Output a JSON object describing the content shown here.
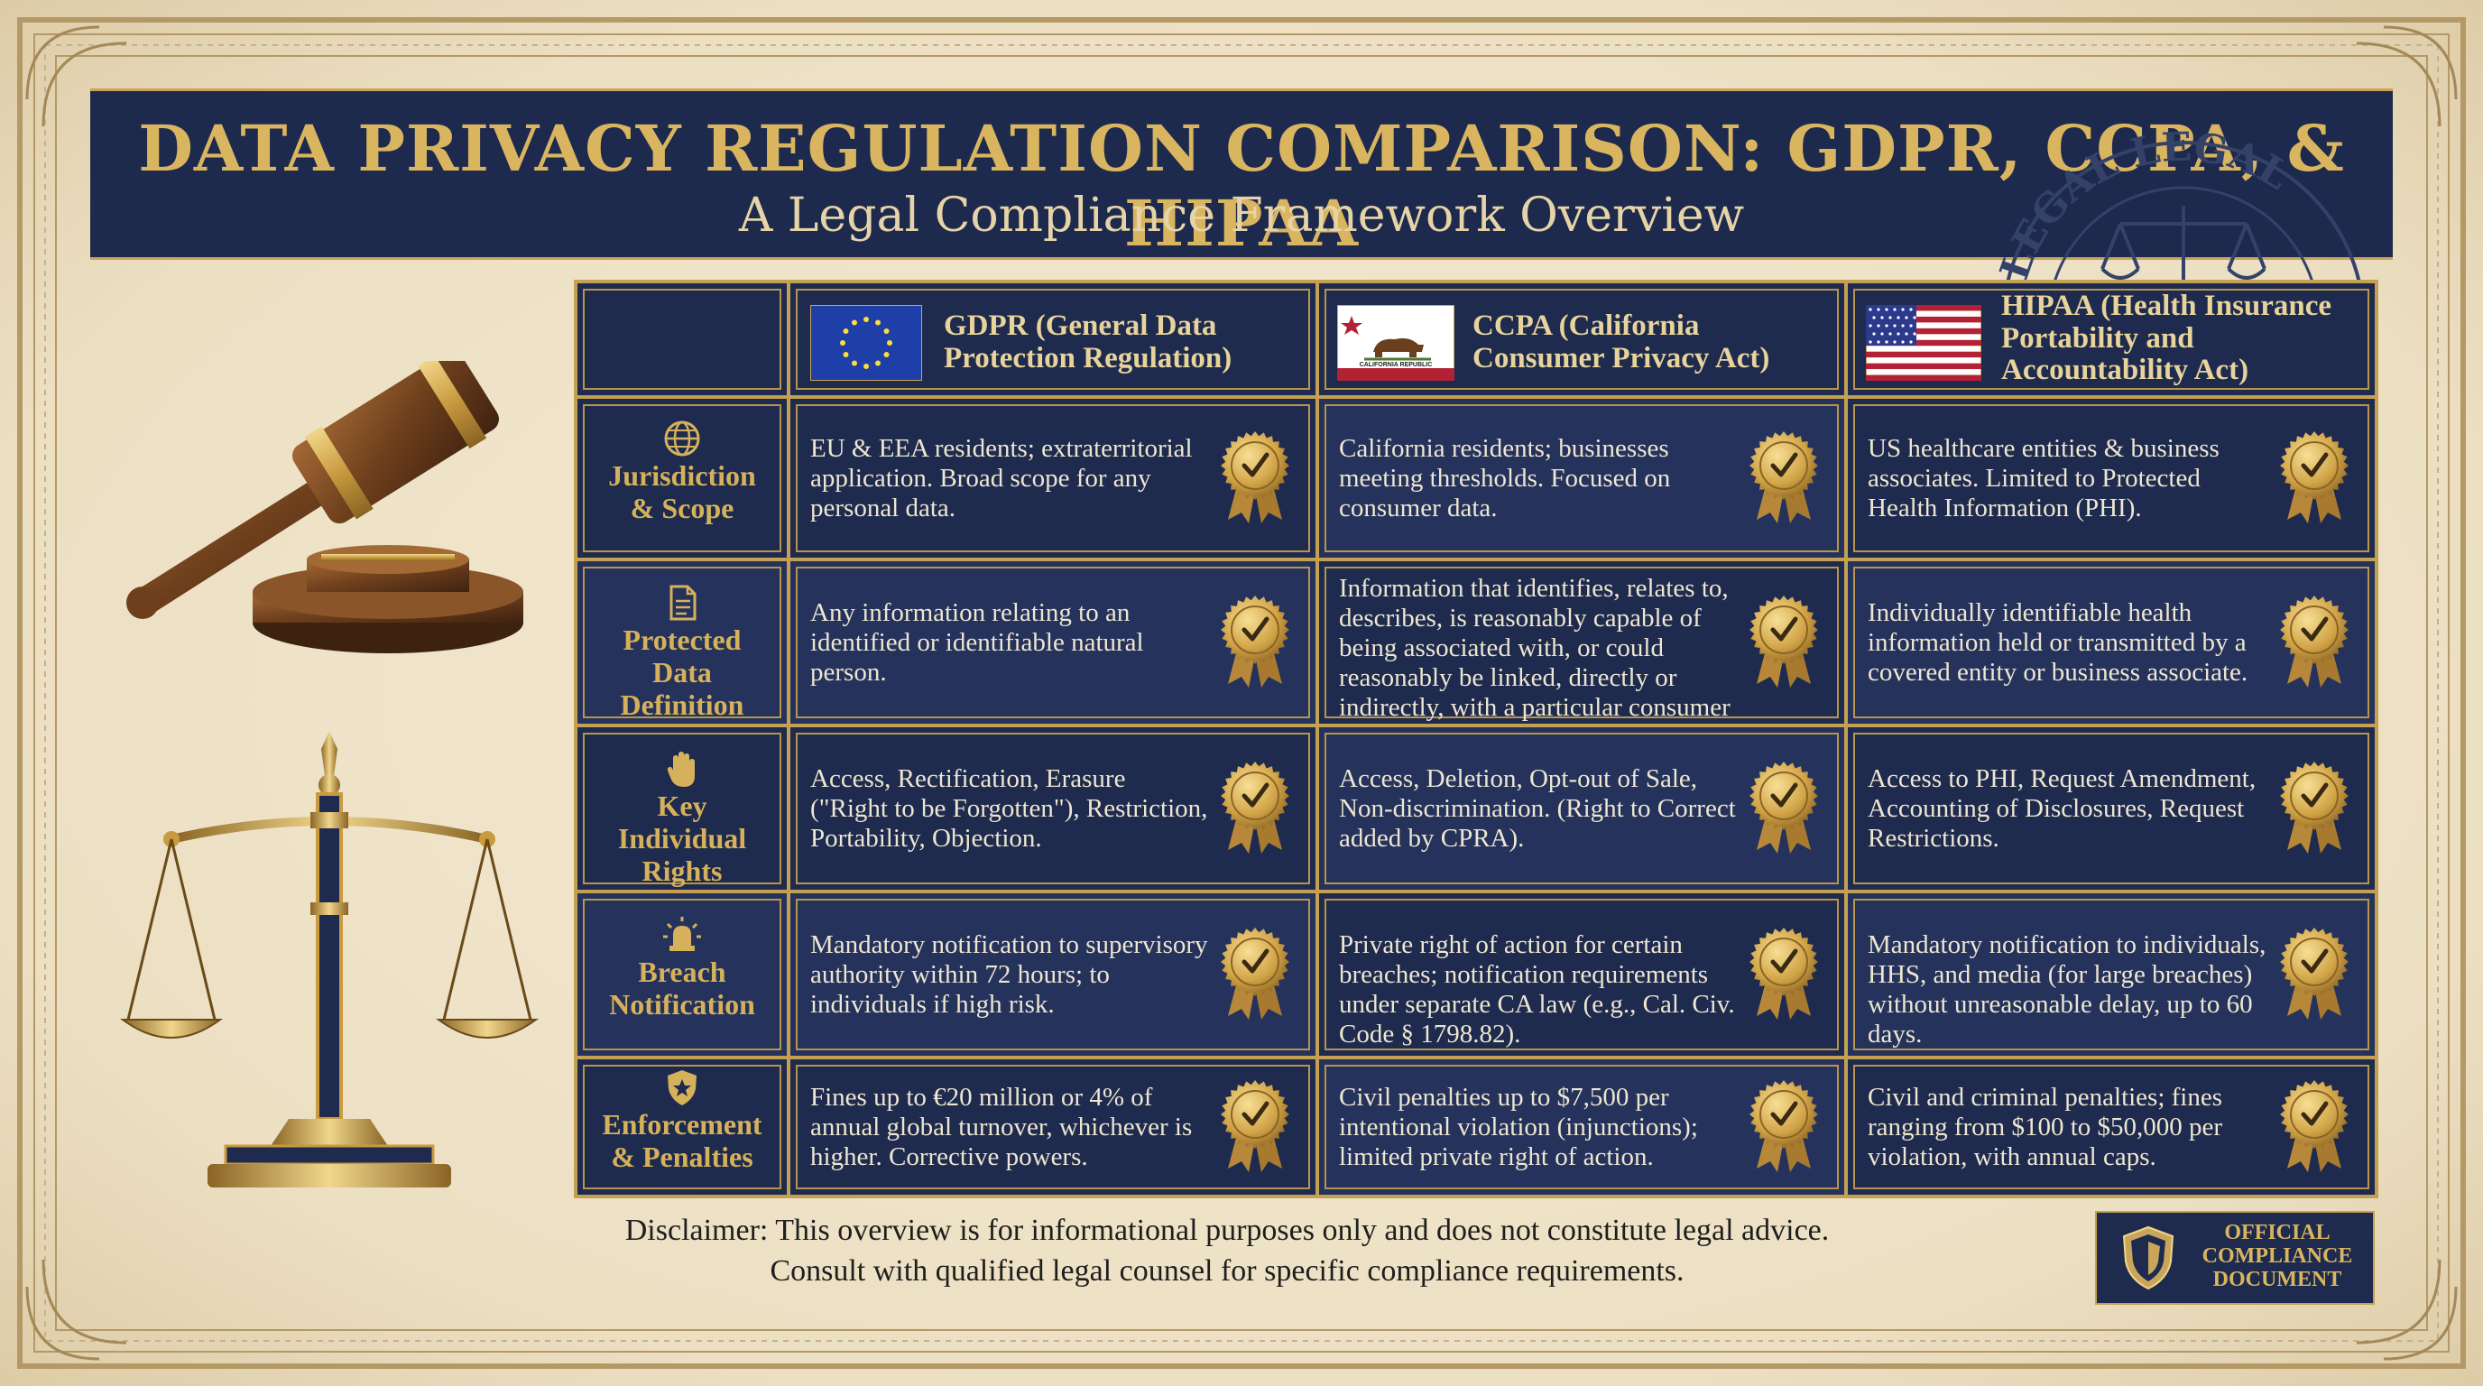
{
  "header": {
    "title": "DATA PRIVACY REGULATION COMPARISON: GDPR, CCPA, & HIPAA",
    "subtitle": "A Legal Compliance Framework Overview"
  },
  "columns": [
    {
      "label": "GDPR (General Data Protection Regulation)",
      "flag": "eu-flag-icon"
    },
    {
      "label": "CCPA (California Consumer Privacy Act)",
      "flag": "california-flag-icon",
      "flag_text": "CALIFORNIA REPUBLIC"
    },
    {
      "label": "HIPAA (Health Insurance Portability and Accountability Act)",
      "flag": "us-flag-icon"
    }
  ],
  "rows": [
    {
      "label": "Jurisdiction & Scope",
      "icon": "globe-icon",
      "cells": [
        "EU & EEA residents; extraterritorial application. Broad scope for any personal data.",
        "California residents; businesses meeting thresholds. Focused on consumer data.",
        "US healthcare entities & business associates. Limited to Protected Health Information (PHI)."
      ]
    },
    {
      "label": "Protected Data Definition",
      "icon": "document-icon",
      "cells": [
        "Any information relating to an identified or identifiable natural person.",
        "Information that identifies, relates to, describes, is reasonably capable of being associated with, or could reasonably be linked, directly or indirectly, with a particular consumer or household.",
        "Individually identifiable health information held or transmitted by a covered entity or business associate."
      ]
    },
    {
      "label": "Key Individual Rights",
      "icon": "hand-icon",
      "cells": [
        "Access, Rectification, Erasure (\"Right to be Forgotten\"), Restriction, Portability, Objection.",
        "Access, Deletion, Opt-out of Sale, Non-discrimination. (Right to Correct added by CPRA).",
        "Access to PHI, Request Amendment, Accounting of Disclosures, Request Restrictions."
      ]
    },
    {
      "label": "Breach Notification",
      "icon": "alarm-icon",
      "cells": [
        "Mandatory notification to supervisory authority within 72 hours; to individuals if high risk.",
        "Private right of action for certain breaches; notification requirements under separate CA law (e.g., Cal. Civ. Code § 1798.82).",
        "Mandatory notification to individuals, HHS, and media (for large breaches) without unreasonable delay, up to 60 days."
      ]
    },
    {
      "label": "Enforcement & Penalties",
      "icon": "badge-icon",
      "cells": [
        "Fines up to €20 million or 4% of annual global turnover, whichever is higher. Corrective powers.",
        "Civil penalties up to $7,500 per intentional violation (injunctions); limited private right of action.",
        "Civil and criminal penalties; fines ranging from $100 to $50,000 per violation, with annual caps."
      ]
    }
  ],
  "disclaimer": {
    "line1": "Disclaimer: This overview is for informational purposes only and does not constitute legal advice.",
    "line2": "Consult with qualified legal counsel for specific compliance requirements."
  },
  "official_badge": {
    "line1": "OFFICIAL",
    "line2": "COMPLIANCE",
    "line3": "DOCUMENT"
  },
  "watermark_text": "LEGAL LEGAL",
  "colors": {
    "navy": "#1d2a4d",
    "gold": "#c9a55b",
    "parchment": "#efe4cc"
  }
}
